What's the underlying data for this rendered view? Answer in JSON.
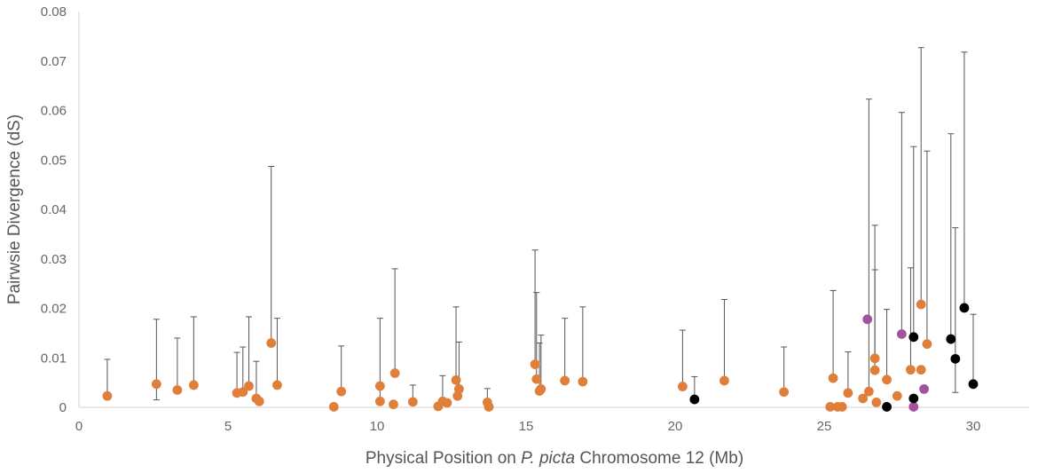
{
  "chart_data": {
    "type": "scatter",
    "title": "",
    "xlabel_parts": [
      "Physical Position on ",
      "P. picta",
      " Chromosome 12 (Mb)"
    ],
    "ylabel": "Pairwsie Divergence (dS)",
    "xlim": [
      0,
      32
    ],
    "ylim": [
      0,
      0.08
    ],
    "x_ticks": [
      "0",
      "5",
      "10",
      "15",
      "20",
      "25",
      "30"
    ],
    "y_ticks": [
      "0",
      "0.01",
      "0.02",
      "0.03",
      "0.04",
      "0.05",
      "0.06",
      "0.07",
      "0.08"
    ],
    "grid": false,
    "legend": "none",
    "error_bars": "upper",
    "colors": {
      "orange": "#E07F3A",
      "purple": "#A452A0",
      "black": "#000000",
      "axis": "#d9d9d9",
      "error": "#555555"
    },
    "series": [
      {
        "color": "orange",
        "points": [
          {
            "x": 0.95,
            "y": 0.0023,
            "hi": 0.0097
          },
          {
            "x": 2.6,
            "y": 0.0047,
            "hi": 0.0178,
            "lo": 0.0015
          },
          {
            "x": 3.3,
            "y": 0.0035,
            "hi": 0.014
          },
          {
            "x": 3.85,
            "y": 0.0045,
            "hi": 0.0183
          },
          {
            "x": 5.3,
            "y": 0.0029,
            "hi": 0.0111
          },
          {
            "x": 5.5,
            "y": 0.0031,
            "hi": 0.0122
          },
          {
            "x": 5.7,
            "y": 0.0043,
            "hi": 0.0183
          },
          {
            "x": 5.95,
            "y": 0.0018,
            "hi": 0.0093
          },
          {
            "x": 6.05,
            "y": 0.0012
          },
          {
            "x": 6.45,
            "y": 0.013,
            "hi": 0.0487
          },
          {
            "x": 6.65,
            "y": 0.0045,
            "hi": 0.018
          },
          {
            "x": 8.55,
            "y": 0.0001
          },
          {
            "x": 8.8,
            "y": 0.0032,
            "hi": 0.0124
          },
          {
            "x": 10.1,
            "y": 0.0012,
            "hi": 0.018
          },
          {
            "x": 10.1,
            "y": 0.0043
          },
          {
            "x": 10.55,
            "y": 0.0006
          },
          {
            "x": 10.6,
            "y": 0.0069,
            "hi": 0.028
          },
          {
            "x": 11.2,
            "y": 0.0011,
            "hi": 0.0045
          },
          {
            "x": 12.05,
            "y": 0.0002
          },
          {
            "x": 12.2,
            "y": 0.0012,
            "hi": 0.0064
          },
          {
            "x": 12.35,
            "y": 0.0009
          },
          {
            "x": 12.65,
            "y": 0.0055,
            "hi": 0.0203
          },
          {
            "x": 12.7,
            "y": 0.0023
          },
          {
            "x": 12.75,
            "y": 0.0037,
            "hi": 0.0132
          },
          {
            "x": 13.7,
            "y": 0.001,
            "hi": 0.0038
          },
          {
            "x": 13.75,
            "y": 0.0001
          },
          {
            "x": 15.3,
            "y": 0.0087,
            "hi": 0.0318
          },
          {
            "x": 15.35,
            "y": 0.0057,
            "hi": 0.0232
          },
          {
            "x": 15.45,
            "y": 0.0033,
            "hi": 0.013
          },
          {
            "x": 15.5,
            "y": 0.0037,
            "hi": 0.0146
          },
          {
            "x": 16.3,
            "y": 0.0054,
            "hi": 0.018
          },
          {
            "x": 16.9,
            "y": 0.0052,
            "hi": 0.0203
          },
          {
            "x": 20.25,
            "y": 0.0042,
            "hi": 0.0156
          },
          {
            "x": 21.65,
            "y": 0.0054,
            "hi": 0.0218
          },
          {
            "x": 23.65,
            "y": 0.0031,
            "hi": 0.0122
          },
          {
            "x": 25.2,
            "y": 0.0001
          },
          {
            "x": 25.3,
            "y": 0.0059,
            "hi": 0.0236
          },
          {
            "x": 25.45,
            "y": 0.0001
          },
          {
            "x": 25.6,
            "y": 0.0001
          },
          {
            "x": 25.8,
            "y": 0.0029,
            "hi": 0.0112
          },
          {
            "x": 26.3,
            "y": 0.0018
          },
          {
            "x": 26.5,
            "y": 0.0032,
            "hi": 0.0623
          },
          {
            "x": 26.7,
            "y": 0.0099,
            "hi": 0.0368
          },
          {
            "x": 26.7,
            "y": 0.0075,
            "hi": 0.0278
          },
          {
            "x": 26.75,
            "y": 0.001
          },
          {
            "x": 27.1,
            "y": 0.0056,
            "hi": 0.0198
          },
          {
            "x": 27.45,
            "y": 0.0023
          },
          {
            "x": 27.9,
            "y": 0.0076,
            "hi": 0.0282
          },
          {
            "x": 28.25,
            "y": 0.0208,
            "hi": 0.0727
          },
          {
            "x": 28.25,
            "y": 0.0076
          },
          {
            "x": 28.45,
            "y": 0.0128,
            "hi": 0.0518
          }
        ]
      },
      {
        "color": "purple",
        "points": [
          {
            "x": 26.45,
            "y": 0.0178
          },
          {
            "x": 27.6,
            "y": 0.0148,
            "hi": 0.0596
          },
          {
            "x": 28.0,
            "y": 0.0001
          },
          {
            "x": 28.35,
            "y": 0.0037
          }
        ]
      },
      {
        "color": "black",
        "points": [
          {
            "x": 20.65,
            "y": 0.0016,
            "hi": 0.0062
          },
          {
            "x": 27.1,
            "y": 0.0001
          },
          {
            "x": 28.0,
            "y": 0.0142,
            "hi": 0.0527
          },
          {
            "x": 28.0,
            "y": 0.0018
          },
          {
            "x": 29.25,
            "y": 0.0138,
            "hi": 0.0553
          },
          {
            "x": 29.4,
            "y": 0.0098,
            "hi": 0.0363,
            "lo": 0.003
          },
          {
            "x": 29.7,
            "y": 0.0201,
            "hi": 0.0718
          },
          {
            "x": 30.0,
            "y": 0.0047,
            "hi": 0.0188
          }
        ]
      }
    ]
  }
}
